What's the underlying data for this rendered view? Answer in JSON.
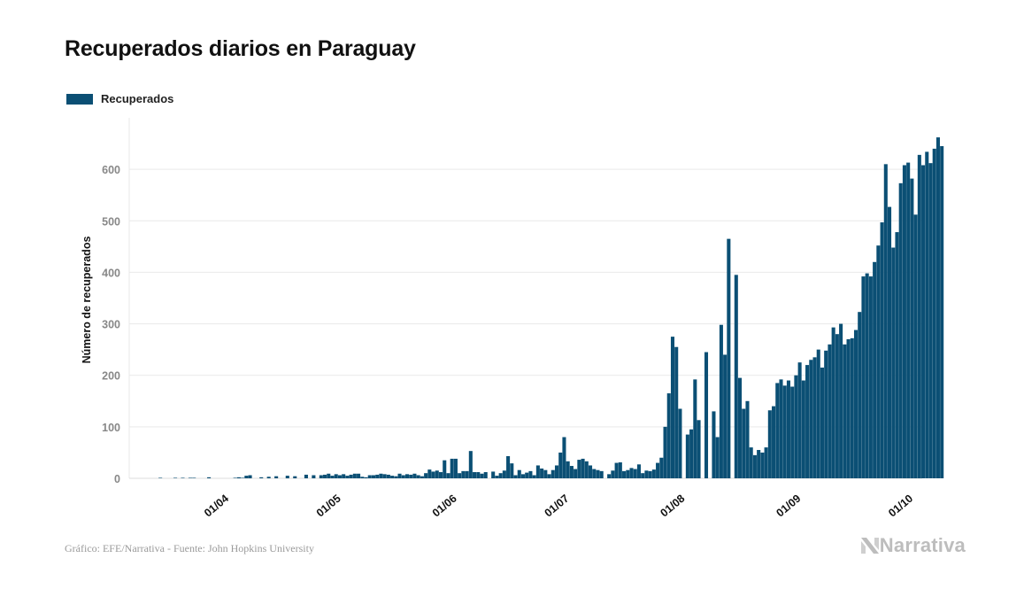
{
  "title": "Recuperados diarios en Paraguay",
  "footer": "Gráfico: EFE/Narrativa - Fuente: John Hopkins University",
  "brand": "Narrativa",
  "icons": {
    "brand_logo": "narrativa-n-logo-icon"
  },
  "colors": {
    "bar": "#0b4f74",
    "grid": "#e9e9e9",
    "tick_text": "#888888",
    "axis_text": "#111111"
  },
  "chart_data": {
    "type": "bar",
    "legend": [
      "Recuperados"
    ],
    "legend_position": "top-left",
    "ylabel": "Número de recuperados",
    "xlabel": "",
    "ylim": [
      0,
      700
    ],
    "yticks": [
      0,
      100,
      200,
      300,
      400,
      500,
      600
    ],
    "grid": true,
    "x_start": "2020-03-10",
    "x_ticks": [
      {
        "date": "2020-04-01",
        "label": "01/04"
      },
      {
        "date": "2020-05-01",
        "label": "01/05"
      },
      {
        "date": "2020-06-01",
        "label": "01/06"
      },
      {
        "date": "2020-07-01",
        "label": "01/07"
      },
      {
        "date": "2020-08-01",
        "label": "01/08"
      },
      {
        "date": "2020-09-01",
        "label": "01/09"
      },
      {
        "date": "2020-10-01",
        "label": "01/10"
      }
    ],
    "values": [
      0,
      0,
      0,
      0,
      0,
      1,
      0,
      0,
      0,
      1,
      0,
      1,
      0,
      1,
      1,
      0,
      0,
      0,
      2,
      0,
      0,
      0,
      0,
      0,
      0,
      1,
      2,
      1,
      5,
      6,
      0,
      0,
      2,
      0,
      3,
      0,
      4,
      0,
      0,
      5,
      0,
      4,
      0,
      0,
      7,
      0,
      6,
      0,
      6,
      7,
      9,
      5,
      8,
      6,
      8,
      5,
      7,
      9,
      9,
      3,
      2,
      6,
      6,
      7,
      9,
      8,
      7,
      5,
      4,
      9,
      6,
      8,
      7,
      9,
      6,
      4,
      10,
      17,
      13,
      15,
      12,
      35,
      10,
      38,
      38,
      10,
      14,
      14,
      53,
      12,
      12,
      9,
      12,
      0,
      13,
      5,
      10,
      15,
      43,
      29,
      6,
      16,
      8,
      11,
      14,
      6,
      25,
      19,
      16,
      8,
      16,
      25,
      50,
      80,
      33,
      24,
      18,
      36,
      38,
      33,
      25,
      18,
      16,
      14,
      0,
      8,
      15,
      30,
      31,
      14,
      16,
      20,
      18,
      27,
      10,
      15,
      14,
      17,
      30,
      40,
      100,
      165,
      275,
      255,
      135,
      0,
      85,
      95,
      192,
      113,
      0,
      245,
      0,
      130,
      80,
      298,
      240,
      465,
      0,
      395,
      195,
      135,
      150,
      60,
      45,
      55,
      50,
      60,
      132,
      140,
      185,
      192,
      180,
      190,
      178,
      200,
      225,
      190,
      220,
      230,
      235,
      250,
      215,
      248,
      260,
      293,
      280,
      300,
      260,
      270,
      272,
      288,
      323,
      392,
      398,
      392,
      420,
      452,
      497,
      610,
      527,
      448,
      478,
      573,
      608,
      613,
      582,
      512,
      628,
      608,
      634,
      612,
      640,
      662,
      645
    ]
  }
}
